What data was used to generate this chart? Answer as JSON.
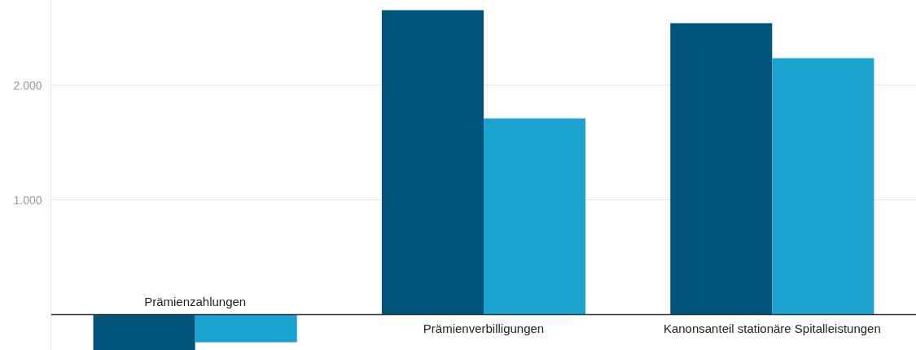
{
  "chart_data": {
    "type": "bar",
    "categories": [
      "Prämienzahlungen",
      "Prämienverbilligungen",
      "Kanonsanteil stationäre Spitalleistungen"
    ],
    "series": [
      {
        "color": "#00547a",
        "values": [
          -312,
          2652,
          2539
        ]
      },
      {
        "color": "#1ba3d0",
        "values": [
          -241,
          1709,
          2234
        ]
      }
    ],
    "ylim": [
      -312,
      2738
    ],
    "yticks": [
      {
        "value": 0,
        "label": null
      },
      {
        "value": 1000,
        "label": "1.000"
      },
      {
        "value": 2000,
        "label": "2.000"
      }
    ],
    "grid": "y"
  }
}
